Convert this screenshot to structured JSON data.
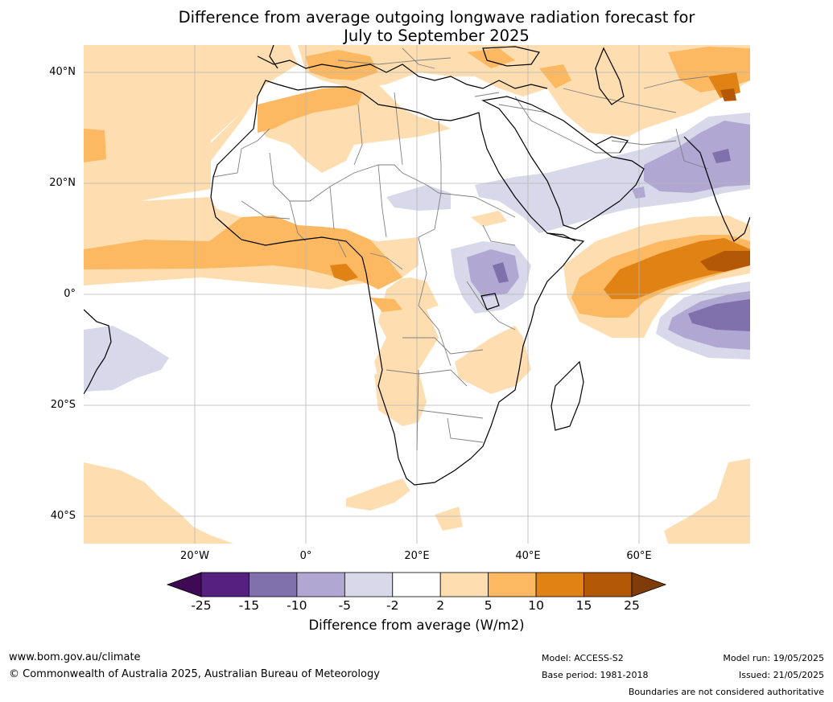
{
  "title_line1": "Difference from average outgoing longwave radiation forecast for",
  "title_line2": "July to September 2025",
  "latitude_labels": [
    "40°N",
    "20°N",
    "0°",
    "20°S",
    "40°S"
  ],
  "longitude_labels": [
    "20°W",
    "0°",
    "20°E",
    "40°E",
    "60°E"
  ],
  "legend": {
    "label": "Difference from average (W/m2)",
    "ticks": [
      "-25",
      "-15",
      "-10",
      "-5",
      "-2",
      "2",
      "5",
      "10",
      "15",
      "25"
    ],
    "colors": {
      "below_-25": "#3f0a55",
      "-25_-15": "#55207f",
      "-15_-10": "#8070ac",
      "-10_-5": "#b0a8d2",
      "-5_-2": "#d8d8ea",
      "-2_2": "#ffffff",
      "2_5": "#fedeb0",
      "5_10": "#fdb862",
      "10_15": "#e08214",
      "15_25": "#b35806",
      "above_25": "#7f3b08"
    }
  },
  "footer": {
    "website": "www.bom.gov.au/climate",
    "copyright": "© Commonwealth of Australia 2025, Australian Bureau of Meteorology",
    "model": "Model: ACCESS-S2",
    "base_period": "Base period: 1981-2018",
    "model_run": "Model run: 19/05/2025",
    "issued": "Issued: 21/05/2025",
    "disclaimer": "Boundaries are not considered authoritative"
  }
}
